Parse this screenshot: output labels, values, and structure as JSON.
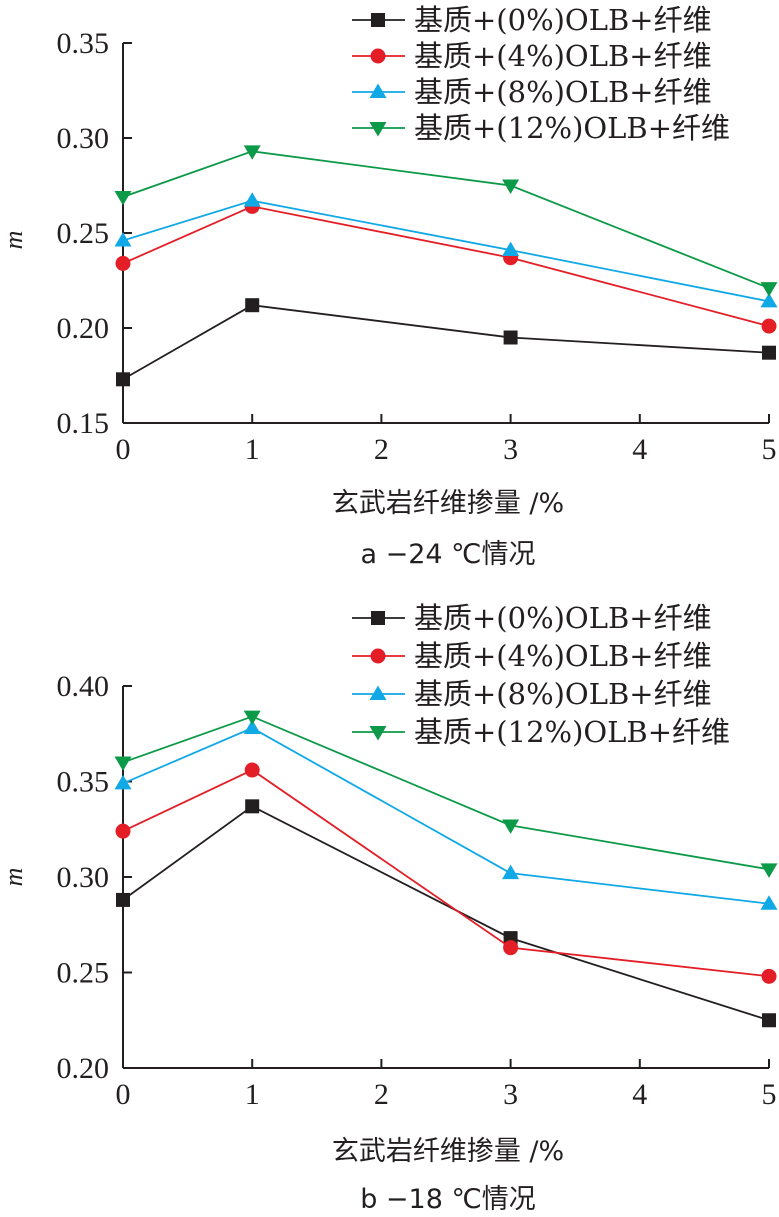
{
  "chart_data": [
    {
      "type": "line",
      "title": "",
      "caption": "a −24 ℃情况",
      "xlabel": "玄武岩纤维掺量 /%",
      "ylabel": "m",
      "xlim": [
        0,
        5
      ],
      "ylim": [
        0.15,
        0.35
      ],
      "xticks": [
        0,
        1,
        2,
        3,
        4,
        5
      ],
      "xtick_labels": [
        "0",
        "1",
        "2",
        "3",
        "4",
        "5"
      ],
      "yticks": [
        0.15,
        0.2,
        0.25,
        0.3,
        0.35
      ],
      "ytick_labels": [
        "0.15",
        "0.20",
        "0.25",
        "0.30",
        "0.35"
      ],
      "grid": false,
      "legend_position": "top-right",
      "x": [
        0,
        1,
        3,
        5
      ],
      "series": [
        {
          "name": "基质+(0%)OLB+纤维",
          "marker": "square",
          "color": "#231f20",
          "values": [
            0.173,
            0.212,
            0.195,
            0.187
          ]
        },
        {
          "name": "基质+(4%)OLB+纤维",
          "marker": "circle",
          "color": "#e41e26",
          "values": [
            0.234,
            0.264,
            0.237,
            0.201
          ]
        },
        {
          "name": "基质+(8%)OLB+纤维",
          "marker": "triangle-up",
          "color": "#11a8e6",
          "values": [
            0.246,
            0.267,
            0.241,
            0.214
          ]
        },
        {
          "name": "基质+(12%)OLB+纤维",
          "marker": "triangle-down",
          "color": "#0d9a48",
          "values": [
            0.269,
            0.293,
            0.275,
            0.221
          ]
        }
      ]
    },
    {
      "type": "line",
      "title": "",
      "caption": "b −18 ℃情况",
      "xlabel": "玄武岩纤维掺量 /%",
      "ylabel": "m",
      "xlim": [
        0,
        5
      ],
      "ylim": [
        0.2,
        0.4
      ],
      "xticks": [
        0,
        1,
        2,
        3,
        4,
        5
      ],
      "xtick_labels": [
        "0",
        "1",
        "2",
        "3",
        "4",
        "5"
      ],
      "yticks": [
        0.2,
        0.25,
        0.3,
        0.35,
        0.4
      ],
      "ytick_labels": [
        "0.20",
        "0.25",
        "0.30",
        "0.35",
        "0.40"
      ],
      "grid": false,
      "legend_position": "top-right",
      "x": [
        0,
        1,
        3,
        5
      ],
      "series": [
        {
          "name": "基质+(0%)OLB+纤维",
          "marker": "square",
          "color": "#231f20",
          "values": [
            0.288,
            0.337,
            0.268,
            0.225
          ]
        },
        {
          "name": "基质+(4%)OLB+纤维",
          "marker": "circle",
          "color": "#e41e26",
          "values": [
            0.324,
            0.356,
            0.263,
            0.248
          ]
        },
        {
          "name": "基质+(8%)OLB+纤维",
          "marker": "triangle-up",
          "color": "#11a8e6",
          "values": [
            0.349,
            0.378,
            0.302,
            0.286
          ]
        },
        {
          "name": "基质+(12%)OLB+纤维",
          "marker": "triangle-down",
          "color": "#0d9a48",
          "values": [
            0.36,
            0.384,
            0.327,
            0.304
          ]
        }
      ]
    }
  ]
}
